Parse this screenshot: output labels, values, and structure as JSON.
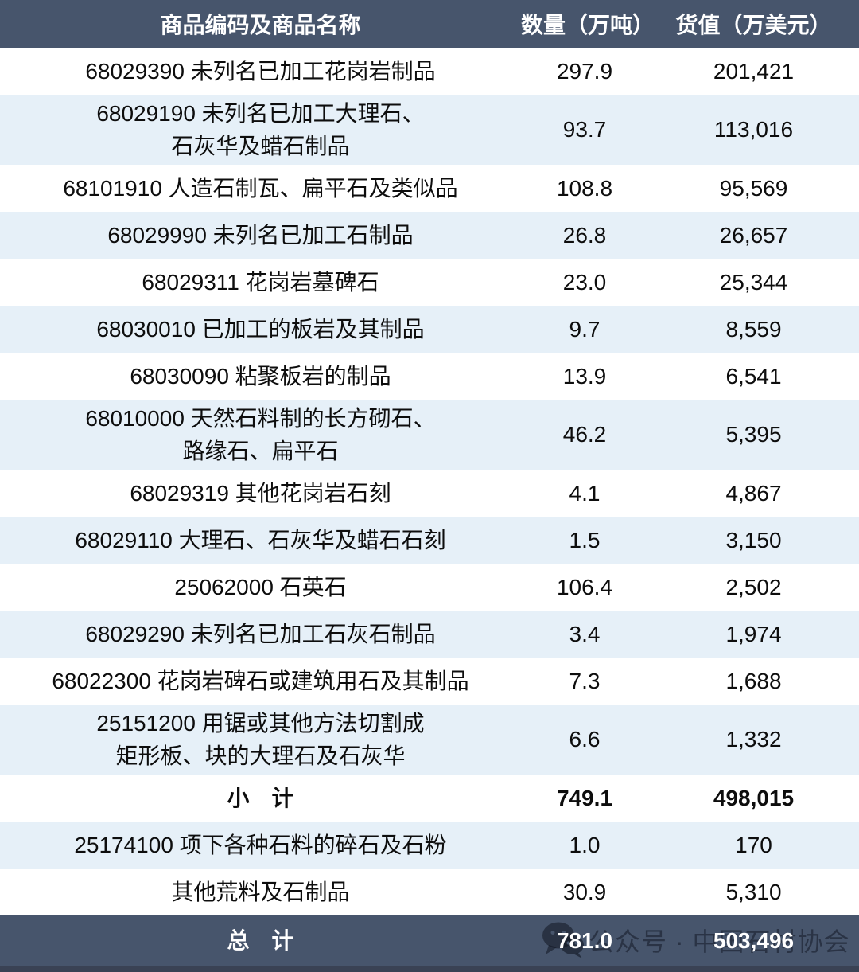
{
  "colors": {
    "header_bg": "#47556C",
    "row_alt_bg": "#E6F0F8",
    "row_bg": "#FFFFFF",
    "total_bg": "#47556C",
    "bottom_edge": "#3A4254",
    "header_text": "#FFFFFF",
    "body_text": "#0D0D0D"
  },
  "header": {
    "product": "商品编码及商品名称",
    "quantity": "数量（万吨）",
    "value": "货值（万美元）"
  },
  "rows": [
    {
      "lines": [
        "68029390 未列名已加工花岗岩制品"
      ],
      "qty": "297.9",
      "value": "201,421",
      "shade": "white",
      "bold": false
    },
    {
      "lines": [
        "68029190 未列名已加工大理石、",
        "石灰华及蜡石制品"
      ],
      "qty": "93.7",
      "value": "113,016",
      "shade": "blue",
      "bold": false
    },
    {
      "lines": [
        "68101910 人造石制瓦、扁平石及类似品"
      ],
      "qty": "108.8",
      "value": "95,569",
      "shade": "white",
      "bold": false
    },
    {
      "lines": [
        "68029990 未列名已加工石制品"
      ],
      "qty": "26.8",
      "value": "26,657",
      "shade": "blue",
      "bold": false
    },
    {
      "lines": [
        "68029311 花岗岩墓碑石"
      ],
      "qty": "23.0",
      "value": "25,344",
      "shade": "white",
      "bold": false
    },
    {
      "lines": [
        "68030010 已加工的板岩及其制品"
      ],
      "qty": "9.7",
      "value": "8,559",
      "shade": "blue",
      "bold": false
    },
    {
      "lines": [
        "68030090 粘聚板岩的制品"
      ],
      "qty": "13.9",
      "value": "6,541",
      "shade": "white",
      "bold": false
    },
    {
      "lines": [
        "68010000 天然石料制的长方砌石、",
        "路缘石、扁平石"
      ],
      "qty": "46.2",
      "value": "5,395",
      "shade": "blue",
      "bold": false
    },
    {
      "lines": [
        "68029319 其他花岗岩石刻"
      ],
      "qty": "4.1",
      "value": "4,867",
      "shade": "white",
      "bold": false
    },
    {
      "lines": [
        "68029110 大理石、石灰华及蜡石石刻"
      ],
      "qty": "1.5",
      "value": "3,150",
      "shade": "blue",
      "bold": false
    },
    {
      "lines": [
        "25062000 石英石"
      ],
      "qty": "106.4",
      "value": "2,502",
      "shade": "white",
      "bold": false
    },
    {
      "lines": [
        "68029290 未列名已加工石灰石制品"
      ],
      "qty": "3.4",
      "value": "1,974",
      "shade": "blue",
      "bold": false
    },
    {
      "lines": [
        "68022300 花岗岩碑石或建筑用石及其制品"
      ],
      "qty": "7.3",
      "value": "1,688",
      "shade": "white",
      "bold": false
    },
    {
      "lines": [
        "25151200 用锯或其他方法切割成",
        "矩形板、块的大理石及石灰华"
      ],
      "qty": "6.6",
      "value": "1,332",
      "shade": "blue",
      "bold": false
    },
    {
      "lines": [
        "小　计"
      ],
      "qty": "749.1",
      "value": "498,015",
      "shade": "white",
      "bold": true
    },
    {
      "lines": [
        "25174100 项下各种石料的碎石及石粉"
      ],
      "qty": "1.0",
      "value": "170",
      "shade": "blue",
      "bold": false
    },
    {
      "lines": [
        "其他荒料及石制品"
      ],
      "qty": "30.9",
      "value": "5,310",
      "shade": "white",
      "bold": false
    },
    {
      "lines": [
        "总　计"
      ],
      "qty": "781.0",
      "value": "503,496",
      "shade": "dark",
      "bold": true
    }
  ],
  "watermark": {
    "icon": "wechat-icon",
    "text": "公众号 · 中国石材协会"
  },
  "chart_data": {
    "type": "table",
    "title": "",
    "columns": [
      "商品编码及商品名称",
      "数量（万吨）",
      "货值（万美元）"
    ],
    "rows": [
      [
        "68029390 未列名已加工花岗岩制品",
        297.9,
        201421
      ],
      [
        "68029190 未列名已加工大理石、石灰华及蜡石制品",
        93.7,
        113016
      ],
      [
        "68101910 人造石制瓦、扁平石及类似品",
        108.8,
        95569
      ],
      [
        "68029990 未列名已加工石制品",
        26.8,
        26657
      ],
      [
        "68029311 花岗岩墓碑石",
        23.0,
        25344
      ],
      [
        "68030010 已加工的板岩及其制品",
        9.7,
        8559
      ],
      [
        "68030090 粘聚板岩的制品",
        13.9,
        6541
      ],
      [
        "68010000 天然石料制的长方砌石、路缘石、扁平石",
        46.2,
        5395
      ],
      [
        "68029319 其他花岗岩石刻",
        4.1,
        4867
      ],
      [
        "68029110 大理石、石灰华及蜡石石刻",
        1.5,
        3150
      ],
      [
        "25062000 石英石",
        106.4,
        2502
      ],
      [
        "68029290 未列名已加工石灰石制品",
        3.4,
        1974
      ],
      [
        "68022300 花岗岩碑石或建筑用石及其制品",
        7.3,
        1688
      ],
      [
        "25151200 用锯或其他方法切割成矩形板、块的大理石及石灰华",
        6.6,
        1332
      ],
      [
        "小计",
        749.1,
        498015
      ],
      [
        "25174100 项下各种石料的碎石及石粉",
        1.0,
        170
      ],
      [
        "其他荒料及石制品",
        30.9,
        5310
      ],
      [
        "总计",
        781.0,
        503496
      ]
    ]
  }
}
